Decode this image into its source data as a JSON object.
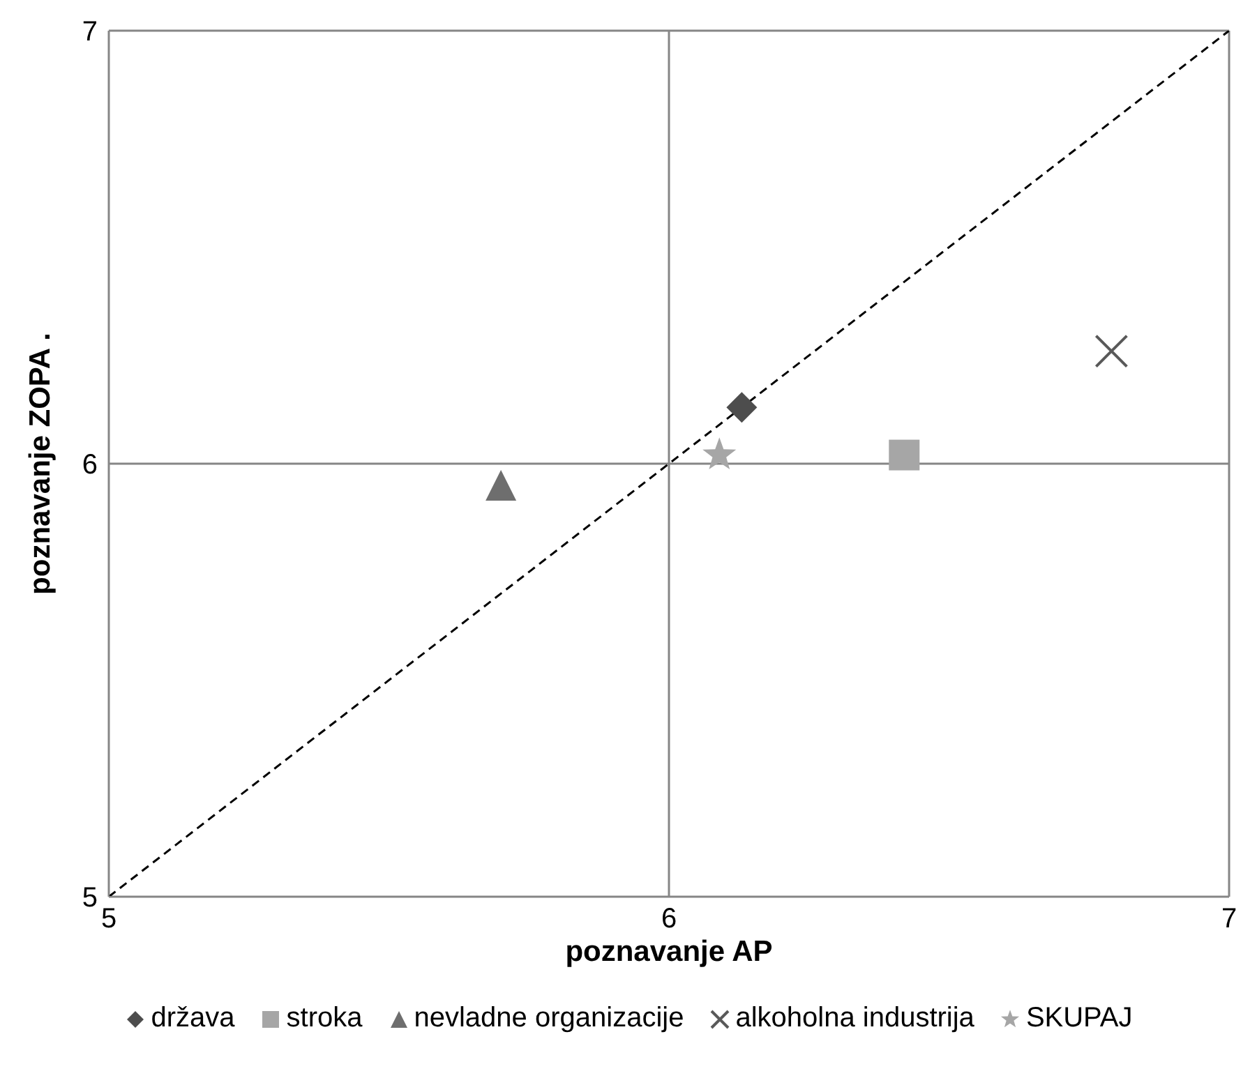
{
  "chart_data": {
    "type": "scatter",
    "xlabel": "poznavanje AP",
    "ylabel": "poznavanje ZOPA .",
    "xlim": [
      5,
      7
    ],
    "ylim": [
      5,
      7
    ],
    "xticks": [
      5,
      6,
      7
    ],
    "yticks": [
      5,
      6,
      7
    ],
    "grid": true,
    "legend": "bottom",
    "series": [
      {
        "name": "država",
        "color": "#4d4d4d",
        "marker": "diamond",
        "x": [
          6.13
        ],
        "values": [
          6.13
        ]
      },
      {
        "name": "stroka",
        "color": "#a6a6a6",
        "marker": "square",
        "x": [
          6.42
        ],
        "values": [
          6.02
        ]
      },
      {
        "name": "nevladne organizacije",
        "color": "#6e6e6e",
        "marker": "triangle",
        "x": [
          5.7
        ],
        "values": [
          5.95
        ]
      },
      {
        "name": "alkoholna industrija",
        "color": "#595959",
        "marker": "cross",
        "x": [
          6.79
        ],
        "values": [
          6.26
        ]
      },
      {
        "name": "SKUPAJ",
        "color": "#a6a6a6",
        "marker": "star",
        "x": [
          6.09
        ],
        "values": [
          6.02
        ]
      },
      {
        "type": "line",
        "color": "#000000",
        "line_style": "dashed",
        "marker": "none",
        "x": [
          5,
          7
        ],
        "values": [
          5,
          7
        ]
      }
    ]
  }
}
